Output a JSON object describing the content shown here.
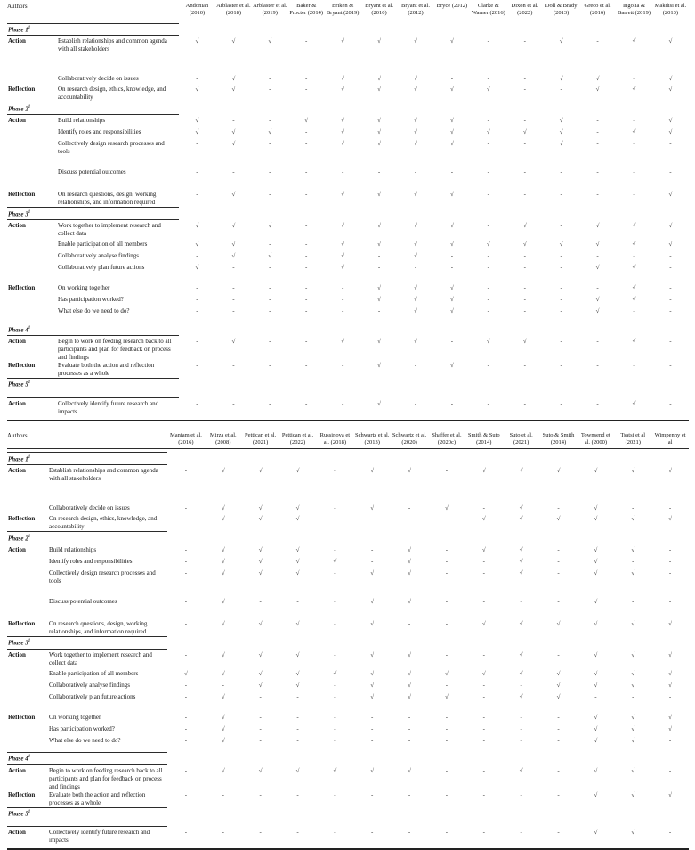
{
  "glyphs": {
    "check": "√",
    "dash": "-"
  },
  "tables": [
    {
      "authors_label": "Authors",
      "authors": [
        "Andonian (2010)",
        "Arblaster et al. (2018)",
        "Arblaster et al. (2019)",
        "Baker & Procter (2014)",
        "Briken & Bryant (2019)",
        "Bryant et al. (2010)",
        "Bryant et al. (2012)",
        "Bryce (2012)",
        "Clarke & Warner (2016)",
        "Dixon et al. (2022)",
        "Doll & Brady (2013)",
        "Greco et al. (2016)",
        "Ingolia & Barrett (2019)",
        "Makdisi et al. (2013)"
      ],
      "sections": [
        {
          "phase": "Phase 1",
          "phase_sup": "1",
          "rows": [
            {
              "role": "Action",
              "desc": "Establish relationships and common agenda with all stakeholders",
              "gap": "g24",
              "values": [
                "√",
                "√",
                "√",
                "-",
                "√",
                "√",
                "√",
                "√",
                "-",
                "-",
                "√",
                "-",
                "√",
                "√"
              ]
            },
            {
              "role": "",
              "desc": "Collaboratively decide on issues",
              "gap": "g3",
              "values": [
                "-",
                "√",
                "-",
                "-",
                "√",
                "√",
                "√",
                "-",
                "-",
                "-",
                "√",
                "√",
                "-",
                "√"
              ]
            },
            {
              "role": "Reflection",
              "desc": "On research design, ethics, knowledge, and accountability",
              "gap": "g0",
              "values": [
                "√",
                "√",
                "-",
                "-",
                "√",
                "√",
                "√",
                "√",
                "√",
                "-",
                "-",
                "√",
                "√",
                "√"
              ]
            }
          ]
        },
        {
          "phase": "Phase 2",
          "phase_sup": "1",
          "rows": [
            {
              "role": "Action",
              "desc": "Build relationships",
              "values": [
                "√",
                "-",
                "-",
                "√",
                "√",
                "√",
                "√",
                "√",
                "-",
                "-",
                "√",
                "-",
                "-",
                "√"
              ]
            },
            {
              "role": "",
              "desc": "Identify roles and responsibilities",
              "values": [
                "√",
                "√",
                "√",
                "-",
                "√",
                "√",
                "√",
                "√",
                "√",
                "√",
                "√",
                "-",
                "√",
                "√"
              ]
            },
            {
              "role": "",
              "desc": "Collectively design research processes and tools",
              "gap": "g14",
              "values": [
                "-",
                "√",
                "-",
                "-",
                "√",
                "√",
                "√",
                "√",
                "-",
                "-",
                "√",
                "-",
                "-",
                "-"
              ]
            },
            {
              "role": "",
              "desc": "Discuss potential outcomes",
              "gap": "g16",
              "values": [
                "-",
                "-",
                "-",
                "-",
                "-",
                "-",
                "-",
                "-",
                "-",
                "-",
                "-",
                "-",
                "-",
                "-"
              ]
            },
            {
              "role": "Reflection",
              "desc": "On research questions, design, working relationships, and information required",
              "gap": "g0",
              "values": [
                "-",
                "√",
                "-",
                "-",
                "√",
                "√",
                "√",
                "√",
                "-",
                "-",
                "-",
                "-",
                "-",
                "√"
              ]
            }
          ]
        },
        {
          "phase": "Phase 3",
          "phase_sup": "1",
          "rows": [
            {
              "role": "Action",
              "desc": "Work together to implement research and collect data",
              "gap": "g3",
              "values": [
                "√",
                "√",
                "√",
                "-",
                "√",
                "√",
                "√",
                "√",
                "-",
                "√",
                "-",
                "√",
                "√",
                "√"
              ]
            },
            {
              "role": "",
              "desc": "Enable participation of all members",
              "values": [
                "√",
                "√",
                "-",
                "-",
                "√",
                "√",
                "√",
                "√",
                "√",
                "√",
                "√",
                "√",
                "√",
                "√"
              ]
            },
            {
              "role": "",
              "desc": "Collaboratively analyse findings",
              "values": [
                "-",
                "√",
                "√",
                "-",
                "√",
                "-",
                "√",
                "-",
                "-",
                "-",
                "-",
                "-",
                "-",
                "-"
              ]
            },
            {
              "role": "",
              "desc": "Collaboratively plan future actions",
              "gap": "g14",
              "values": [
                "√",
                "-",
                "-",
                "-",
                "√",
                "-",
                "-",
                "-",
                "-",
                "-",
                "-",
                "√",
                "√",
                "-"
              ]
            },
            {
              "role": "Reflection",
              "desc": "On working together",
              "values": [
                "-",
                "-",
                "-",
                "-",
                "-",
                "√",
                "√",
                "√",
                "-",
                "-",
                "-",
                "-",
                "√",
                "-"
              ]
            },
            {
              "role": "",
              "desc": "Has participation worked?",
              "values": [
                "-",
                "-",
                "-",
                "-",
                "-",
                "√",
                "√",
                "√",
                "-",
                "-",
                "-",
                "√",
                "√",
                "-"
              ]
            },
            {
              "role": "",
              "desc": "What else do we need to do?",
              "gap": "g8",
              "values": [
                "-",
                "-",
                "-",
                "-",
                "-",
                "-",
                "√",
                "√",
                "-",
                "-",
                "-",
                "√",
                "-",
                "-"
              ]
            }
          ]
        },
        {
          "phase": "Phase 4",
          "phase_sup": "1",
          "rows": [
            {
              "role": "Action",
              "desc": "Begin to work on feeding research back to all participants and plan for feedback on process and findings",
              "gap": "g0",
              "values": [
                "-",
                "√",
                "-",
                "-",
                "√",
                "√",
                "√",
                "-",
                "√",
                "√",
                "-",
                "-",
                "√",
                "-"
              ]
            },
            {
              "role": "Reflection",
              "desc": "Evaluate both the action and reflection processes as a whole",
              "gap": "g0",
              "values": [
                "-",
                "-",
                "-",
                "-",
                "-",
                "√",
                "-",
                "√",
                "-",
                "-",
                "-",
                "-",
                "-",
                "-"
              ]
            }
          ]
        },
        {
          "phase": "Phase 5",
          "phase_sup": "1",
          "tall": true,
          "rows": [
            {
              "role": "Action",
              "desc": "Collectively identify future research and impacts",
              "gap": "g0",
              "values": [
                "-",
                "-",
                "-",
                "-",
                "-",
                "√",
                "-",
                "-",
                "-",
                "-",
                "-",
                "-",
                "√",
                "-"
              ]
            }
          ]
        }
      ]
    },
    {
      "authors_label": "Authors",
      "authors": [
        "Maniam et al. (2016)",
        "Mirza et al. (2008)",
        "Pettican et al. (2021)",
        "Pettican et al. (2022)",
        "Russinova et al. (2018)",
        "Schwartz et al. (2013)",
        "Schwartz et al. (2020)",
        "Shaffer et al. (2020c)",
        "Smith & Suto (2014)",
        "Suto et al. (2021)",
        "Suto & Smith (2014)",
        "Townsend et al. (2000)",
        "Tsatsi et al (2021)",
        "Wimpenny et al"
      ],
      "sections": [
        {
          "phase": "Phase 1",
          "phase_sup": "1",
          "rows": [
            {
              "role": "Action",
              "desc": "Establish relationships and common agenda with all stakeholders",
              "gap": "g24",
              "values": [
                "-",
                "√",
                "√",
                "√",
                "-",
                "√",
                "√",
                "-",
                "√",
                "√",
                "√",
                "√",
                "√",
                "√"
              ]
            },
            {
              "role": "",
              "desc": "Collaboratively decide on issues",
              "gap": "g3",
              "values": [
                "-",
                "√",
                "√",
                "√",
                "-",
                "√",
                "-",
                "√",
                "-",
                "√",
                "-",
                "√",
                "-",
                "-"
              ]
            },
            {
              "role": "Reflection",
              "desc": "On research design, ethics, knowledge, and accountability",
              "gap": "g0",
              "values": [
                "-",
                "√",
                "√",
                "√",
                "-",
                "-",
                "-",
                "-",
                "√",
                "√",
                "√",
                "√",
                "√",
                "√"
              ]
            }
          ]
        },
        {
          "phase": "Phase 2",
          "phase_sup": "1",
          "rows": [
            {
              "role": "Action",
              "desc": "Build relationships",
              "values": [
                "-",
                "√",
                "√",
                "√",
                "-",
                "-",
                "√",
                "-",
                "√",
                "√",
                "-",
                "√",
                "√",
                "-"
              ]
            },
            {
              "role": "",
              "desc": "Identify roles and responsibilities",
              "values": [
                "-",
                "√",
                "√",
                "√",
                "√",
                "-",
                "√",
                "-",
                "-",
                "√",
                "-",
                "√",
                "-",
                "-"
              ]
            },
            {
              "role": "",
              "desc": "Collectively design research processes and tools",
              "gap": "g14",
              "values": [
                "-",
                "√",
                "√",
                "√",
                "-",
                "√",
                "√",
                "-",
                "-",
                "√",
                "-",
                "√",
                "√",
                "-"
              ]
            },
            {
              "role": "",
              "desc": "Discuss potential outcomes",
              "gap": "g16",
              "values": [
                "-",
                "√",
                "-",
                "-",
                "-",
                "√",
                "√",
                "-",
                "-",
                "-",
                "-",
                "√",
                "-",
                "-"
              ]
            },
            {
              "role": "Reflection",
              "desc": "On research questions, design, working relationships, and information required",
              "gap": "g0",
              "values": [
                "-",
                "√",
                "√",
                "√",
                "-",
                "√",
                "-",
                "-",
                "√",
                "√",
                "√",
                "√",
                "√",
                "√"
              ]
            }
          ]
        },
        {
          "phase": "Phase 3",
          "phase_sup": "1",
          "rows": [
            {
              "role": "Action",
              "desc": "Work together to implement research and collect data",
              "gap": "g3",
              "values": [
                "-",
                "√",
                "√",
                "√",
                "-",
                "√",
                "√",
                "-",
                "-",
                "√",
                "-",
                "√",
                "√",
                "√"
              ]
            },
            {
              "role": "",
              "desc": "Enable participation of all members",
              "values": [
                "√",
                "√",
                "√",
                "√",
                "√",
                "√",
                "√",
                "√",
                "√",
                "√",
                "√",
                "√",
                "√",
                "√"
              ]
            },
            {
              "role": "",
              "desc": "Collaboratively analyse findings",
              "values": [
                "-",
                "-",
                "√",
                "√",
                "-",
                "√",
                "√",
                "-",
                "-",
                "-",
                "√",
                "√",
                "√",
                "√"
              ]
            },
            {
              "role": "",
              "desc": "Collaboratively plan future actions",
              "gap": "g14",
              "values": [
                "-",
                "√",
                "-",
                "-",
                "-",
                "√",
                "√",
                "√",
                "-",
                "√",
                "√",
                "-",
                "-",
                "-"
              ]
            },
            {
              "role": "Reflection",
              "desc": "On working together",
              "values": [
                "-",
                "√",
                "-",
                "-",
                "-",
                "-",
                "-",
                "-",
                "-",
                "-",
                "-",
                "√",
                "√",
                "√"
              ]
            },
            {
              "role": "",
              "desc": "Has participation worked?",
              "values": [
                "-",
                "√",
                "-",
                "-",
                "-",
                "-",
                "-",
                "-",
                "-",
                "-",
                "-",
                "√",
                "√",
                "√"
              ]
            },
            {
              "role": "",
              "desc": "What else do we need to do?",
              "gap": "g8",
              "values": [
                "-",
                "√",
                "-",
                "-",
                "-",
                "-",
                "-",
                "-",
                "-",
                "-",
                "-",
                "√",
                "√",
                "-"
              ]
            }
          ]
        },
        {
          "phase": "Phase 4",
          "phase_sup": "1",
          "rows": [
            {
              "role": "Action",
              "desc": "Begin to work on feeding research back to all participants and plan for feedback on process and findings",
              "gap": "g0",
              "values": [
                "-",
                "√",
                "√",
                "√",
                "√",
                "√",
                "√",
                "-",
                "-",
                "√",
                "-",
                "√",
                "√",
                "-"
              ]
            },
            {
              "role": "Reflection",
              "desc": "Evaluate both the action and reflection processes as a whole",
              "gap": "g0",
              "values": [
                "-",
                "-",
                "-",
                "-",
                "-",
                "-",
                "-",
                "-",
                "-",
                "-",
                "-",
                "√",
                "√",
                "√"
              ]
            }
          ]
        },
        {
          "phase": "Phase 5",
          "phase_sup": "1",
          "tall": true,
          "rows": [
            {
              "role": "Action",
              "desc": "Collectively identify future research and impacts",
              "gap": "g0",
              "values": [
                "-",
                "-",
                "-",
                "-",
                "-",
                "-",
                "-",
                "-",
                "-",
                "-",
                "-",
                "√",
                "√",
                "-"
              ]
            }
          ]
        }
      ]
    }
  ]
}
